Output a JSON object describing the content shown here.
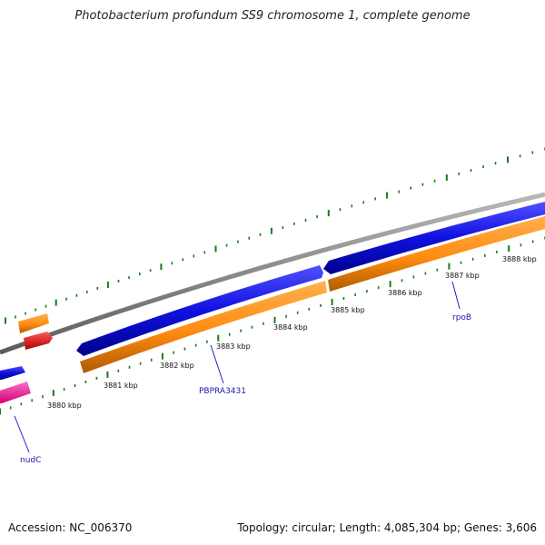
{
  "title": "Photobacterium profundum SS9 chromosome 1, complete genome",
  "footer": {
    "accession": "Accession: NC_006370",
    "topology": "Topology: circular; Length: 4,085,304 bp; Genes: 3,606"
  },
  "ruler_labels": [
    "3880 kbp",
    "3881 kbp",
    "3882 kbp",
    "3883 kbp",
    "3884 kbp",
    "3885 kbp",
    "3886 kbp",
    "3887 kbp",
    "3888 kbp"
  ],
  "gene_labels": [
    "nudC",
    "PBPRA3431",
    "rpoB"
  ],
  "colors": {
    "backbone": "#8a8a8a",
    "forward_cds": "#1010e0",
    "reverse_cds": "#ff8c10",
    "rna": "#ff0000",
    "pink_feature": "#ff2aa0",
    "tick": "#1a7a1a",
    "label_line": "#2020c0"
  }
}
